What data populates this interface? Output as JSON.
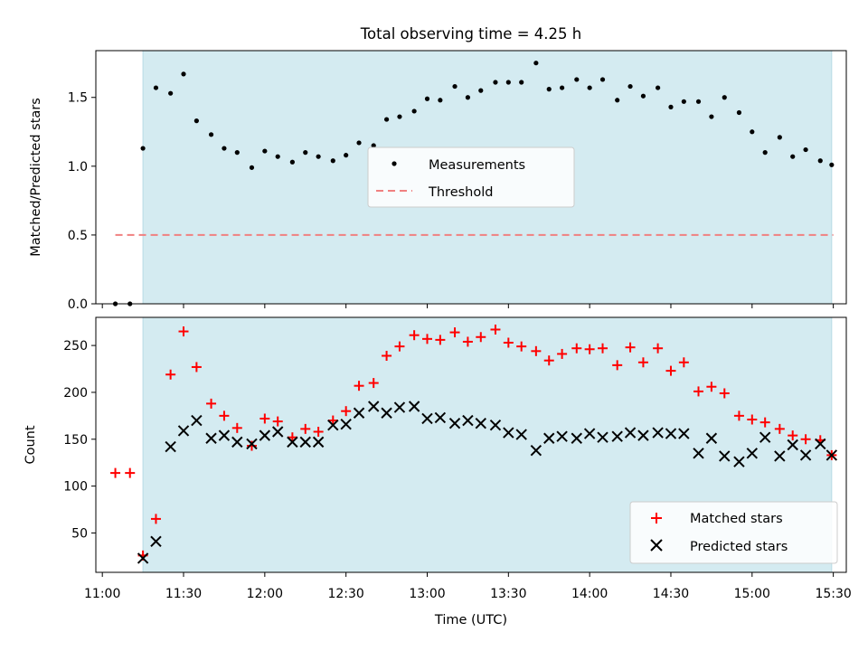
{
  "title": "Total observing time = 4.25 h",
  "colors": {
    "band": "#d4ebf1",
    "band_edge": "#b8dbe5",
    "threshold": "#f08080",
    "measure": "#000000",
    "matched": "#ff0000",
    "predicted": "#000000"
  },
  "chart_data": [
    {
      "type": "scatter",
      "panel": "top",
      "ylabel": "Matched/Predicted stars",
      "ylim": [
        0,
        1.84
      ],
      "yticks": [
        0.0,
        0.5,
        1.0,
        1.5
      ],
      "ytick_labels": [
        "0.0",
        "0.5",
        "1.0",
        "1.5"
      ],
      "shaded_range_x": [
        11.25,
        15.49
      ],
      "threshold": {
        "value": 0.5,
        "x": [
          11.08,
          15.5
        ]
      },
      "legend": {
        "position": "center",
        "entries": [
          "Measurements",
          "Threshold"
        ]
      },
      "x": [
        11.08,
        11.17,
        11.25,
        11.33,
        11.42,
        11.5,
        11.58,
        11.67,
        11.75,
        11.83,
        11.92,
        12.0,
        12.08,
        12.17,
        12.25,
        12.33,
        12.42,
        12.5,
        12.58,
        12.67,
        12.75,
        12.83,
        12.92,
        13.0,
        13.08,
        13.17,
        13.25,
        13.33,
        13.42,
        13.5,
        13.58,
        13.67,
        13.75,
        13.83,
        13.92,
        14.0,
        14.08,
        14.17,
        14.25,
        14.33,
        14.42,
        14.5,
        14.58,
        14.67,
        14.75,
        14.83,
        14.92,
        15.0,
        15.08,
        15.17,
        15.25,
        15.33,
        15.42,
        15.49
      ],
      "values": [
        0.0,
        0.0,
        1.13,
        1.57,
        1.53,
        1.67,
        1.33,
        1.23,
        1.13,
        1.1,
        0.99,
        1.11,
        1.07,
        1.03,
        1.1,
        1.07,
        1.04,
        1.08,
        1.17,
        1.15,
        1.34,
        1.36,
        1.4,
        1.49,
        1.48,
        1.58,
        1.5,
        1.55,
        1.61,
        1.61,
        1.61,
        1.75,
        1.56,
        1.57,
        1.63,
        1.57,
        1.63,
        1.48,
        1.58,
        1.51,
        1.57,
        1.43,
        1.47,
        1.47,
        1.36,
        1.5,
        1.39,
        1.25,
        1.1,
        1.21,
        1.07,
        1.12,
        1.04,
        1.01
      ]
    },
    {
      "type": "scatter",
      "panel": "bottom",
      "xlabel": "Time (UTC)",
      "ylabel": "Count",
      "xlim": [
        10.96,
        15.58
      ],
      "ylim": [
        8,
        280
      ],
      "yticks": [
        50,
        100,
        150,
        200,
        250
      ],
      "ytick_labels": [
        "50",
        "100",
        "150",
        "200",
        "250"
      ],
      "xticks": [
        11.0,
        11.5,
        12.0,
        12.5,
        13.0,
        13.5,
        14.0,
        14.5,
        15.0,
        15.5
      ],
      "xtick_labels": [
        "11:00",
        "11:30",
        "12:00",
        "12:30",
        "13:00",
        "13:30",
        "14:00",
        "14:30",
        "15:00",
        "15:30"
      ],
      "shaded_range_x": [
        11.25,
        15.49
      ],
      "legend": {
        "position": "lower right",
        "entries": [
          "Matched stars",
          "Predicted stars"
        ]
      },
      "series": [
        {
          "name": "Matched stars",
          "marker": "plus",
          "x": [
            11.08,
            11.17,
            11.25,
            11.33,
            11.42,
            11.5,
            11.58,
            11.67,
            11.75,
            11.83,
            11.92,
            12.0,
            12.08,
            12.17,
            12.25,
            12.33,
            12.42,
            12.5,
            12.58,
            12.67,
            12.75,
            12.83,
            12.92,
            13.0,
            13.08,
            13.17,
            13.25,
            13.33,
            13.42,
            13.5,
            13.58,
            13.67,
            13.75,
            13.83,
            13.92,
            14.0,
            14.08,
            14.17,
            14.25,
            14.33,
            14.42,
            14.5,
            14.58,
            14.67,
            14.75,
            14.83,
            14.92,
            15.0,
            15.08,
            15.17,
            15.25,
            15.33,
            15.42,
            15.49
          ],
          "values": [
            114,
            114,
            26,
            65,
            219,
            265,
            227,
            188,
            175,
            162,
            143,
            172,
            169,
            152,
            161,
            158,
            170,
            180,
            207,
            210,
            239,
            249,
            261,
            257,
            256,
            264,
            254,
            259,
            267,
            253,
            249,
            244,
            234,
            241,
            247,
            246,
            247,
            229,
            248,
            232,
            247,
            223,
            232,
            201,
            206,
            199,
            175,
            171,
            168,
            161,
            154,
            150,
            149,
            133
          ]
        },
        {
          "name": "Predicted stars",
          "marker": "x",
          "x": [
            11.08,
            11.17,
            11.25,
            11.33,
            11.42,
            11.5,
            11.58,
            11.67,
            11.75,
            11.83,
            11.92,
            12.0,
            12.08,
            12.17,
            12.25,
            12.33,
            12.42,
            12.5,
            12.58,
            12.67,
            12.75,
            12.83,
            12.92,
            13.0,
            13.08,
            13.17,
            13.25,
            13.33,
            13.42,
            13.5,
            13.58,
            13.67,
            13.75,
            13.83,
            13.92,
            14.0,
            14.08,
            14.17,
            14.25,
            14.33,
            14.42,
            14.5,
            14.58,
            14.67,
            14.75,
            14.83,
            14.92,
            15.0,
            15.08,
            15.17,
            15.25,
            15.33,
            15.42,
            15.49
          ],
          "values": [
            null,
            null,
            23,
            41,
            142,
            159,
            170,
            151,
            154,
            147,
            145,
            154,
            158,
            147,
            147,
            147,
            165,
            166,
            178,
            185,
            178,
            184,
            185,
            172,
            173,
            167,
            170,
            167,
            165,
            157,
            155,
            138,
            151,
            153,
            151,
            156,
            152,
            153,
            157,
            154,
            157,
            156,
            156,
            135,
            151,
            132,
            126,
            135,
            152,
            132,
            144,
            133,
            145,
            133
          ]
        }
      ]
    }
  ]
}
